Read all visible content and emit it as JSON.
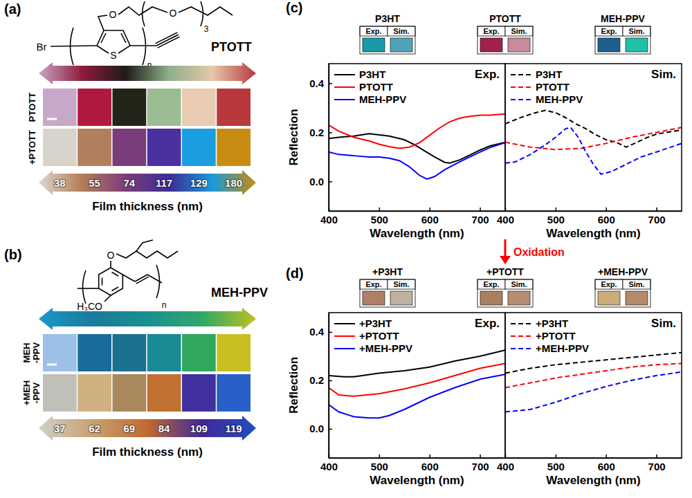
{
  "chart_data": [
    {
      "type": "swatch",
      "panel_label": "(a)",
      "polymer": "PTOTT",
      "structure_labels": [
        "Br",
        "S",
        "n",
        "O",
        "O",
        "3"
      ],
      "gradient_colors": [
        "#c9a6c6",
        "#8e1b3c",
        "#1e1c16",
        "#8fb08a",
        "#e6c8aa",
        "#b5393b"
      ],
      "gradient_colors_oxidized": [
        "#ddd6cc",
        "#b47c58",
        "#7c3c7a",
        "#3c2c96",
        "#1a9ad8",
        "#c98a12"
      ],
      "rows": [
        {
          "label": "PTOTT",
          "colors": [
            "#c8a8c8",
            "#b0193f",
            "#242418",
            "#9cbc94",
            "#e8cbb0",
            "#b8383c"
          ]
        },
        {
          "label": "+PTOTT",
          "colors": [
            "#d8d4cc",
            "#b0805c",
            "#7b3c7c",
            "#4a30a0",
            "#1a9ee0",
            "#c88c14"
          ]
        }
      ],
      "thickness": [
        38,
        55,
        74,
        117,
        129,
        180
      ],
      "xlabel": "Film thickness (nm)"
    },
    {
      "type": "swatch",
      "panel_label": "(b)",
      "polymer": "MEH-PPV",
      "structure_labels": [
        "O",
        "H₃CO",
        "n"
      ],
      "gradient_colors": [
        "#1a98c8",
        "#1a7a9c",
        "#1a9090",
        "#30a868",
        "#c0c020"
      ],
      "gradient_colors_oxidized": [
        "#d0d0c8",
        "#c8a070",
        "#c06a30",
        "#402898",
        "#2050c0"
      ],
      "rows": [
        {
          "label": "MEH-PPV",
          "colors": [
            "#9cc0e8",
            "#1a6c9c",
            "#1c7090",
            "#1a8a94",
            "#30a860",
            "#c8c020"
          ]
        },
        {
          "label": "+MEH-PPV",
          "colors": [
            "#c0c0b8",
            "#d0b080",
            "#a8885c",
            "#c07030",
            "#4030a0",
            "#2860c8"
          ]
        }
      ],
      "thickness": [
        37,
        62,
        69,
        84,
        109,
        119
      ],
      "xlabel": "Film thickness (nm)"
    },
    {
      "type": "line",
      "panel_label": "(c)",
      "annotation": "Oxidation",
      "xlabel": "Wavelength (nm)",
      "ylabel": "Reflection",
      "xlim": [
        400,
        750
      ],
      "xticks": [
        400,
        500,
        600,
        700
      ],
      "ylim": [
        -0.12,
        0.48
      ],
      "yticks": [
        {
          "value": 0,
          "label": "0.0"
        },
        0.2,
        0.4
      ],
      "legend": "top-left",
      "color_boxes": {
        "labels": [
          "Exp.",
          "Sim."
        ],
        "groups": [
          {
            "name": "P3HT",
            "colors": [
              "#1a9aa8",
              "#4fa3b8"
            ]
          },
          {
            "name": "PTOTT",
            "colors": [
              "#a0224a",
              "#c98a9c"
            ]
          },
          {
            "name": "MEH-PPV",
            "colors": [
              "#1f5f8f",
              "#22c0a8"
            ]
          }
        ]
      },
      "subplots": [
        {
          "title": "Exp.",
          "series": [
            {
              "name": "P3HT",
              "color": "#000000",
              "line_style": "solid",
              "x": [
                400,
                420,
                450,
                480,
                500,
                520,
                550,
                570,
                590,
                610,
                630,
                640,
                660,
                680,
                700,
                720,
                750
              ],
              "values": [
                0.175,
                0.18,
                0.185,
                0.195,
                0.19,
                0.185,
                0.17,
                0.15,
                0.125,
                0.1,
                0.078,
                0.075,
                0.088,
                0.108,
                0.128,
                0.145,
                0.16
              ]
            },
            {
              "name": "PTOTT",
              "color": "#ff0000",
              "line_style": "solid",
              "x": [
                400,
                420,
                450,
                480,
                500,
                520,
                540,
                560,
                580,
                600,
                620,
                640,
                660,
                680,
                700,
                720,
                750
              ],
              "values": [
                0.23,
                0.205,
                0.18,
                0.165,
                0.152,
                0.142,
                0.135,
                0.14,
                0.158,
                0.188,
                0.218,
                0.243,
                0.258,
                0.265,
                0.27,
                0.27,
                0.275
              ]
            },
            {
              "name": "MEH-PPV",
              "color": "#0000ff",
              "line_style": "solid",
              "x": [
                400,
                420,
                450,
                480,
                500,
                520,
                540,
                560,
                580,
                595,
                610,
                630,
                650,
                670,
                700,
                720,
                750
              ],
              "values": [
                0.12,
                0.11,
                0.105,
                0.1,
                0.1,
                0.095,
                0.085,
                0.06,
                0.025,
                0.01,
                0.02,
                0.048,
                0.07,
                0.09,
                0.12,
                0.138,
                0.158
              ]
            }
          ]
        },
        {
          "title": "Sim.",
          "series": [
            {
              "name": "P3HT",
              "color": "#000000",
              "line_style": "dashed",
              "x": [
                400,
                430,
                460,
                480,
                500,
                520,
                540,
                560,
                580,
                600,
                620,
                640,
                660,
                680,
                700,
                750
              ],
              "values": [
                0.235,
                0.26,
                0.28,
                0.29,
                0.28,
                0.26,
                0.235,
                0.215,
                0.19,
                0.17,
                0.16,
                0.14,
                0.158,
                0.178,
                0.193,
                0.21
              ]
            },
            {
              "name": "PTOTT",
              "color": "#ff0000",
              "line_style": "dashed",
              "x": [
                400,
                450,
                500,
                550,
                600,
                650,
                700,
                750
              ],
              "values": [
                0.16,
                0.14,
                0.13,
                0.135,
                0.155,
                0.18,
                0.2,
                0.22
              ]
            },
            {
              "name": "MEH-PPV",
              "color": "#0000ff",
              "line_style": "dashed",
              "x": [
                400,
                420,
                450,
                480,
                500,
                520,
                530,
                545,
                560,
                575,
                590,
                610,
                640,
                670,
                700,
                750
              ],
              "values": [
                0.075,
                0.08,
                0.11,
                0.15,
                0.18,
                0.215,
                0.22,
                0.18,
                0.12,
                0.07,
                0.03,
                0.04,
                0.07,
                0.1,
                0.12,
                0.155
              ]
            }
          ]
        }
      ]
    },
    {
      "type": "line",
      "panel_label": "(d)",
      "xlabel": "Wavelength (nm)",
      "ylabel": "Reflection",
      "xlim": [
        400,
        750
      ],
      "xticks": [
        400,
        500,
        600,
        700
      ],
      "ylim": [
        -0.12,
        0.48
      ],
      "yticks": [
        {
          "value": 0,
          "label": "0.0"
        },
        0.2,
        0.4
      ],
      "legend": "top-left",
      "color_boxes": {
        "labels": [
          "Exp.",
          "Sim."
        ],
        "groups": [
          {
            "name": "+P3HT",
            "colors": [
              "#b07f6a",
              "#bfb0a0"
            ]
          },
          {
            "name": "+PTOTT",
            "colors": [
              "#a9805f",
              "#b58d72"
            ]
          },
          {
            "name": "+MEH-PPV",
            "colors": [
              "#c9ae7a",
              "#b48a6a"
            ]
          }
        ]
      },
      "subplots": [
        {
          "title": "Exp.",
          "series": [
            {
              "name": "+P3HT",
              "color": "#000000",
              "line_style": "solid",
              "x": [
                400,
                430,
                450,
                500,
                550,
                600,
                650,
                700,
                720,
                750
              ],
              "values": [
                0.22,
                0.215,
                0.215,
                0.23,
                0.24,
                0.255,
                0.28,
                0.3,
                0.31,
                0.325
              ]
            },
            {
              "name": "+PTOTT",
              "color": "#ff0000",
              "line_style": "solid",
              "x": [
                400,
                420,
                450,
                500,
                550,
                600,
                650,
                700,
                750
              ],
              "values": [
                0.17,
                0.14,
                0.135,
                0.145,
                0.165,
                0.19,
                0.22,
                0.25,
                0.27
              ]
            },
            {
              "name": "+MEH-PPV",
              "color": "#0000ff",
              "line_style": "solid",
              "x": [
                400,
                420,
                450,
                480,
                500,
                520,
                550,
                600,
                650,
                700,
                750
              ],
              "values": [
                0.1,
                0.07,
                0.05,
                0.045,
                0.045,
                0.055,
                0.08,
                0.13,
                0.17,
                0.205,
                0.225
              ]
            }
          ]
        },
        {
          "title": "Sim.",
          "series": [
            {
              "name": "+P3HT",
              "color": "#000000",
              "line_style": "dashed",
              "x": [
                400,
                450,
                500,
                550,
                600,
                650,
                700,
                750
              ],
              "values": [
                0.23,
                0.25,
                0.265,
                0.275,
                0.285,
                0.295,
                0.305,
                0.315
              ]
            },
            {
              "name": "+PTOTT",
              "color": "#ff0000",
              "line_style": "dashed",
              "x": [
                400,
                450,
                500,
                550,
                600,
                650,
                700,
                750
              ],
              "values": [
                0.17,
                0.19,
                0.21,
                0.225,
                0.24,
                0.255,
                0.265,
                0.27
              ]
            },
            {
              "name": "+MEH-PPV",
              "color": "#0000ff",
              "line_style": "dashed",
              "x": [
                400,
                450,
                500,
                550,
                600,
                650,
                700,
                750
              ],
              "values": [
                0.07,
                0.08,
                0.11,
                0.145,
                0.175,
                0.2,
                0.22,
                0.235
              ]
            }
          ]
        }
      ]
    }
  ]
}
